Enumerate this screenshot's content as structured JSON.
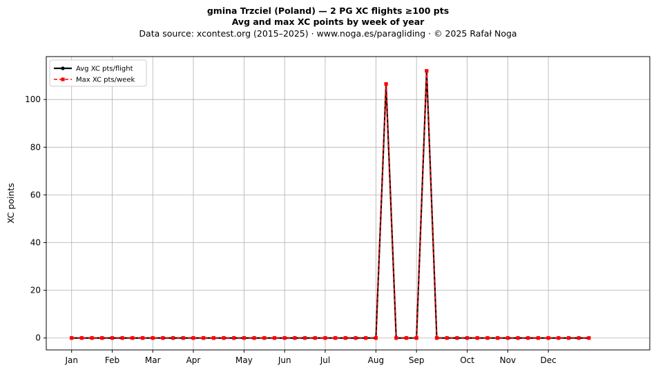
{
  "header": {
    "title_line1": "gmina Trzciel (Poland)  —  2 PG XC flights ≥100 pts",
    "title_line2": "Avg and max XC points by week of year",
    "subtitle": "Data source: xcontest.org (2015–2025)  ·  www.noga.es/paragliding  ·  © 2025 Rafał Noga"
  },
  "chart_data": {
    "type": "line",
    "ylabel": "XC points",
    "xlabel": "",
    "ylim": [
      -5,
      118
    ],
    "xlim": [
      -2.5,
      57
    ],
    "yticks": [
      0,
      20,
      40,
      60,
      80,
      100
    ],
    "x_month_ticks": [
      {
        "label": "Jan",
        "week": 0
      },
      {
        "label": "Feb",
        "week": 4
      },
      {
        "label": "Mar",
        "week": 8
      },
      {
        "label": "Apr",
        "week": 12
      },
      {
        "label": "May",
        "week": 17
      },
      {
        "label": "Jun",
        "week": 21
      },
      {
        "label": "Jul",
        "week": 25
      },
      {
        "label": "Aug",
        "week": 30
      },
      {
        "label": "Sep",
        "week": 34
      },
      {
        "label": "Oct",
        "week": 39
      },
      {
        "label": "Nov",
        "week": 43
      },
      {
        "label": "Dec",
        "week": 47
      }
    ],
    "x": [
      0,
      1,
      2,
      3,
      4,
      5,
      6,
      7,
      8,
      9,
      10,
      11,
      12,
      13,
      14,
      15,
      16,
      17,
      18,
      19,
      20,
      21,
      22,
      23,
      24,
      25,
      26,
      27,
      28,
      29,
      30,
      31,
      32,
      33,
      34,
      35,
      36,
      37,
      38,
      39,
      40,
      41,
      42,
      43,
      44,
      45,
      46,
      47,
      48,
      49,
      50,
      51
    ],
    "grid": true,
    "legend_position": "top-left",
    "series": [
      {
        "name": "Avg XC pts/flight",
        "color": "#000000",
        "style": "solid",
        "marker": "circle",
        "values": [
          0,
          0,
          0,
          0,
          0,
          0,
          0,
          0,
          0,
          0,
          0,
          0,
          0,
          0,
          0,
          0,
          0,
          0,
          0,
          0,
          0,
          0,
          0,
          0,
          0,
          0,
          0,
          0,
          0,
          0,
          0,
          106.5,
          0,
          0,
          0,
          112,
          0,
          0,
          0,
          0,
          0,
          0,
          0,
          0,
          0,
          0,
          0,
          0,
          0,
          0,
          0,
          0
        ]
      },
      {
        "name": "Max XC pts/week",
        "color": "#ff0000",
        "style": "dashed",
        "marker": "square",
        "values": [
          0,
          0,
          0,
          0,
          0,
          0,
          0,
          0,
          0,
          0,
          0,
          0,
          0,
          0,
          0,
          0,
          0,
          0,
          0,
          0,
          0,
          0,
          0,
          0,
          0,
          0,
          0,
          0,
          0,
          0,
          0,
          106.5,
          0,
          0,
          0,
          112,
          0,
          0,
          0,
          0,
          0,
          0,
          0,
          0,
          0,
          0,
          0,
          0,
          0,
          0,
          0,
          0
        ]
      }
    ]
  }
}
